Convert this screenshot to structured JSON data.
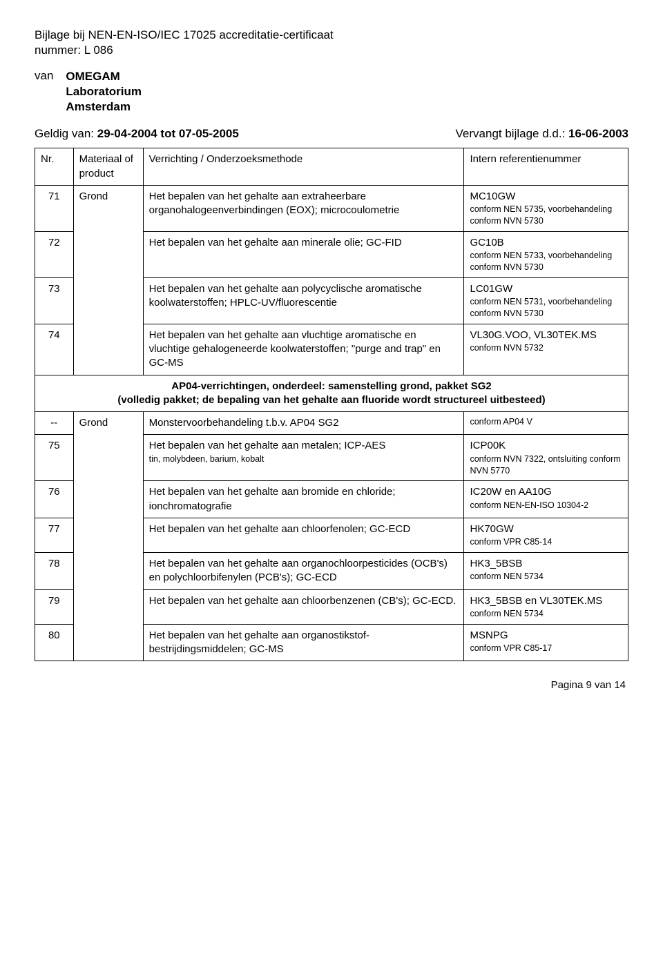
{
  "header": {
    "title1": "Bijlage bij NEN-EN-ISO/IEC 17025 accreditatie-certificaat",
    "title2": "nummer: L 086",
    "van_label": "van",
    "org_name": "OMEGAM",
    "org_line2": "Laboratorium",
    "org_line3": "Amsterdam",
    "validity_left_label": "Geldig van: ",
    "validity_left_value": "29-04-2004 tot 07-05-2005",
    "validity_right_label": "Vervangt bijlage d.d.: ",
    "validity_right_value": "16-06-2003"
  },
  "table": {
    "head": {
      "nr": "Nr.",
      "materiaal": "Materiaal of product",
      "verrichting": "Verrichting / Onderzoeksmethode",
      "intern": "Intern referentienummer"
    },
    "rows": [
      {
        "nr": "71",
        "mat": "Grond",
        "desc": "Het bepalen van het gehalte aan extraheerbare organohalogeenverbindingen (EOX); microcoulometrie",
        "ref_code": "MC10GW",
        "ref_note": "conform NEN 5735, voorbehandeling conform NVN 5730"
      },
      {
        "nr": "72",
        "desc": "Het bepalen van het gehalte aan minerale olie; GC-FID",
        "ref_code": "GC10B",
        "ref_note": "conform NEN 5733, voorbehandeling conform NVN 5730"
      },
      {
        "nr": "73",
        "desc": "Het bepalen van het gehalte aan polycyclische aromatische koolwaterstoffen; HPLC-UV/fluorescentie",
        "ref_code": "LC01GW",
        "ref_note": "conform NEN 5731, voorbehandeling conform NVN 5730"
      },
      {
        "nr": "74",
        "desc": "Het bepalen van het gehalte aan vluchtige aromatische en vluchtige gehalogeneerde koolwaterstoffen; \"purge and trap\" en GC-MS",
        "ref_code": "VL30G.VOO, VL30TEK.MS",
        "ref_note": "conform NVN 5732"
      }
    ],
    "section": {
      "line1": "AP04-verrichtingen, onderdeel: samenstelling grond, pakket SG2",
      "line2": "(volledig pakket; de bepaling van het gehalte aan fluoride wordt structureel uitbesteed)"
    },
    "rows2": [
      {
        "nr": "--",
        "mat": "Grond",
        "desc": "Monstervoorbehandeling t.b.v. AP04 SG2",
        "ref_code": "",
        "ref_note": "conform AP04 V"
      },
      {
        "nr": "75",
        "desc": "Het bepalen van het gehalte aan metalen; ICP-AES",
        "sub": "tin, molybdeen, barium, kobalt",
        "ref_code": "ICP00K",
        "ref_note": "conform NVN 7322, ontsluiting conform NVN 5770"
      },
      {
        "nr": "76",
        "desc": "Het bepalen van het gehalte aan bromide en chloride; ionchromatografie",
        "ref_code": "IC20W en AA10G",
        "ref_note": "conform NEN-EN-ISO 10304-2"
      },
      {
        "nr": "77",
        "desc": "Het bepalen van het gehalte aan chloorfenolen; GC-ECD",
        "ref_code": "HK70GW",
        "ref_note": "conform VPR C85-14"
      },
      {
        "nr": "78",
        "desc": "Het bepalen van het gehalte aan organochloorpesticides (OCB's) en polychloorbifenylen (PCB's); GC-ECD",
        "ref_code": "HK3_5BSB",
        "ref_note": "conform NEN 5734"
      },
      {
        "nr": "79",
        "desc": "Het bepalen van het gehalte aan chloorbenzenen (CB's); GC-ECD.",
        "ref_code": "HK3_5BSB en VL30TEK.MS",
        "ref_note": "conform NEN 5734"
      },
      {
        "nr": "80",
        "desc": "Het bepalen van het gehalte aan organostikstof-bestrijdingsmiddelen; GC-MS",
        "ref_code": "MSNPG",
        "ref_note": "conform VPR C85-17"
      }
    ]
  },
  "footer": "Pagina 9 van 14"
}
